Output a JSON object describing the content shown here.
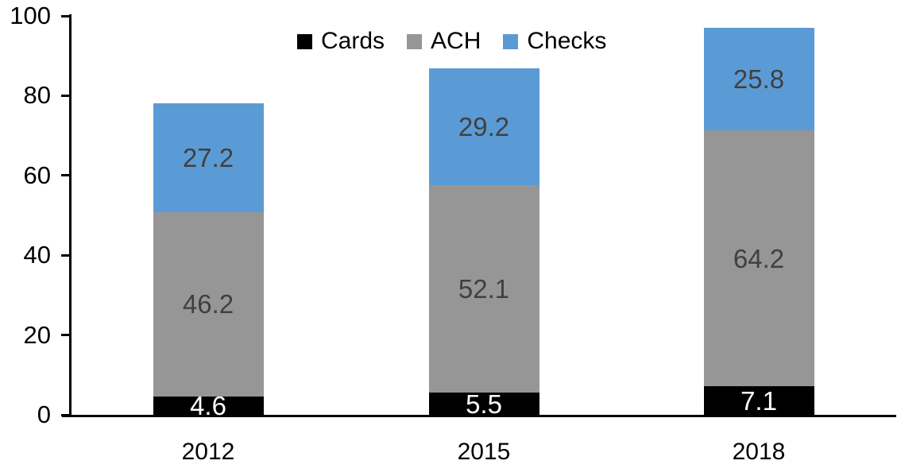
{
  "chart_data": {
    "type": "bar",
    "stacked": true,
    "title": "",
    "xlabel": "",
    "ylabel": "",
    "categories": [
      "2012",
      "2015",
      "2018"
    ],
    "series": [
      {
        "name": "Cards",
        "color": "#000000",
        "label_color": "#ffffff",
        "values": [
          4.6,
          5.5,
          7.1
        ]
      },
      {
        "name": "ACH",
        "color": "#969696",
        "label_color": "#404040",
        "values": [
          46.2,
          52.1,
          64.2
        ]
      },
      {
        "name": "Checks",
        "color": "#5b9bd5",
        "label_color": "#404040",
        "values": [
          27.2,
          29.2,
          25.8
        ]
      }
    ],
    "totals": [
      78.0,
      86.8,
      97.1
    ],
    "ylim": [
      0,
      100
    ],
    "yticks": [
      0,
      20,
      40,
      60,
      80,
      100
    ],
    "legend_position": "top-center",
    "legend_labels": [
      "Cards",
      "ACH",
      "Checks"
    ],
    "grid": false,
    "data_labels_shown": true,
    "background_color": "#ffffff",
    "axis_color": "#000000"
  }
}
